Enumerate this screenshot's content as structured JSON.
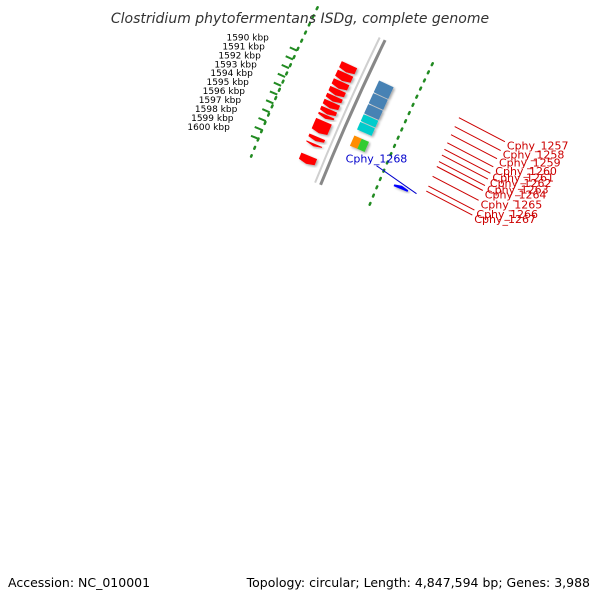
{
  "title": "Clostridium phytofermentans ISDg, complete genome",
  "footer": {
    "accession": "Accession: NC_010001",
    "summary": "Topology: circular; Length: 4,847,594 bp; Genes: 3,988"
  },
  "scale": {
    "unit": "kbp",
    "ticks": [
      "1590 kbp",
      "1591 kbp",
      "1592 kbp",
      "1593 kbp",
      "1594 kbp",
      "1595 kbp",
      "1596 kbp",
      "1597 kbp",
      "1598 kbp",
      "1599 kbp",
      "1600 kbp"
    ]
  },
  "colors": {
    "forward_cds": "#ff0000",
    "reverse_cds": "#0000ff",
    "cog_steelblue": "#4682b4",
    "cog_cyan": "#00cccc",
    "cog_orange": "#ff8c00",
    "cog_green": "#33cc33",
    "dotted_ring": "#228b22",
    "backbone": "#888888",
    "label_red": "#cc0000",
    "label_blue": "#0000cc"
  },
  "genes": [
    {
      "label": "Cphy_1257",
      "color": "label_red"
    },
    {
      "label": "Cphy_1258",
      "color": "label_red"
    },
    {
      "label": "Cphy_1259",
      "color": "label_red"
    },
    {
      "label": "Cphy_1260",
      "color": "label_red"
    },
    {
      "label": "Cphy_1261",
      "color": "label_red"
    },
    {
      "label": "Cphy_1262",
      "color": "label_red"
    },
    {
      "label": "Cphy_1263",
      "color": "label_red"
    },
    {
      "label": "Cphy_1264",
      "color": "label_red"
    },
    {
      "label": "Cphy_1265",
      "color": "label_red"
    },
    {
      "label": "Cphy_1266",
      "color": "label_red"
    },
    {
      "label": "Cphy_1267",
      "color": "label_red"
    },
    {
      "label": "Cphy_1268",
      "color": "label_blue"
    }
  ]
}
